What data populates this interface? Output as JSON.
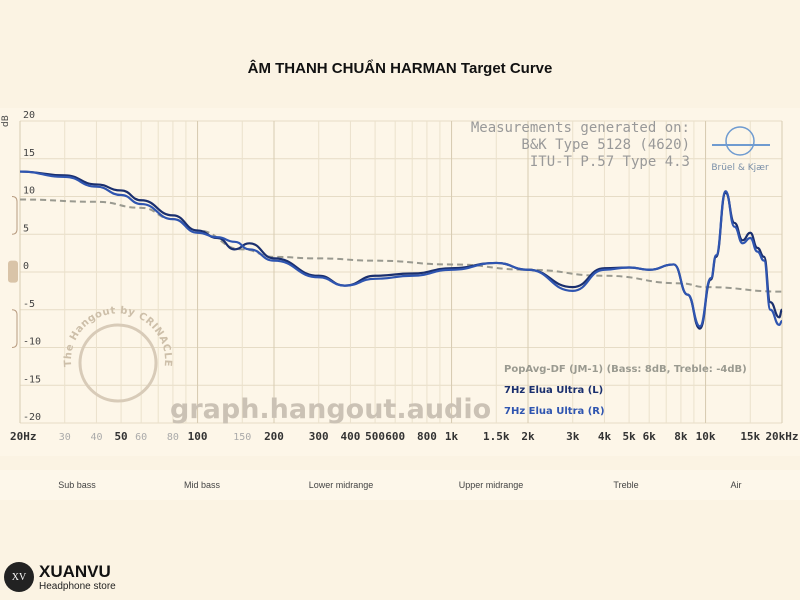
{
  "title": "ÂM THANH CHUẨN HARMAN Target Curve",
  "chart_data": {
    "type": "line",
    "title": "ÂM THANH CHUẨN HARMAN Target Curve",
    "ylabel": "dB",
    "xscale": "log",
    "xlim": [
      20,
      20000
    ],
    "ylim": [
      -20,
      20
    ],
    "grid": true,
    "yticks": [
      "20",
      "15",
      "10",
      "5",
      "0",
      "-5",
      "-10",
      "-15",
      "-20"
    ],
    "ytick_values": [
      20,
      15,
      10,
      5,
      0,
      -5,
      -10,
      -15,
      -20
    ],
    "xticks": [
      {
        "f": 20,
        "label": "20Hz",
        "major": true
      },
      {
        "f": 30,
        "label": "30",
        "major": false
      },
      {
        "f": 40,
        "label": "40",
        "major": false
      },
      {
        "f": 50,
        "label": "50",
        "major": true
      },
      {
        "f": 60,
        "label": "60",
        "major": false
      },
      {
        "f": 80,
        "label": "80",
        "major": false
      },
      {
        "f": 100,
        "label": "100",
        "major": true
      },
      {
        "f": 150,
        "label": "150",
        "major": false
      },
      {
        "f": 200,
        "label": "200",
        "major": true
      },
      {
        "f": 300,
        "label": "300",
        "major": true
      },
      {
        "f": 400,
        "label": "400",
        "major": true
      },
      {
        "f": 500,
        "label": "500",
        "major": true
      },
      {
        "f": 600,
        "label": "600",
        "major": true
      },
      {
        "f": 800,
        "label": "800",
        "major": true
      },
      {
        "f": 1000,
        "label": "1k",
        "major": true
      },
      {
        "f": 1500,
        "label": "1.5k",
        "major": true
      },
      {
        "f": 2000,
        "label": "2k",
        "major": true
      },
      {
        "f": 3000,
        "label": "3k",
        "major": true
      },
      {
        "f": 4000,
        "label": "4k",
        "major": true
      },
      {
        "f": 5000,
        "label": "5k",
        "major": true
      },
      {
        "f": 6000,
        "label": "6k",
        "major": true
      },
      {
        "f": 8000,
        "label": "8k",
        "major": true
      },
      {
        "f": 10000,
        "label": "10k",
        "major": true
      },
      {
        "f": 15000,
        "label": "15k",
        "major": true
      },
      {
        "f": 20000,
        "label": "20kHz",
        "major": true
      }
    ],
    "legend_position": "bottom-right",
    "series": [
      {
        "name": "PopAvg-DF (JM-1) (Bass: 8dB, Treble: -4dB)",
        "color": "#9a9a90",
        "dashed": true,
        "x": [
          20,
          40,
          60,
          80,
          100,
          150,
          200,
          300,
          500,
          1000,
          2000,
          4000,
          8000,
          10000,
          20000
        ],
        "y": [
          9.6,
          9.3,
          8.5,
          7,
          5.5,
          3,
          2,
          1.8,
          1.5,
          1,
          0.3,
          -0.5,
          -1.5,
          -2,
          -2.6
        ]
      },
      {
        "name": "7Hz Elua Ultra (L)",
        "color": "#1a2f6e",
        "dashed": false,
        "x": [
          20,
          30,
          40,
          50,
          60,
          80,
          100,
          120,
          140,
          160,
          200,
          300,
          380,
          500,
          700,
          1000,
          1500,
          2000,
          3000,
          4000,
          5000,
          6000,
          7500,
          8500,
          9500,
          10500,
          11000,
          12000,
          13000,
          14000,
          15000,
          16000,
          17000,
          18000,
          19500,
          20000
        ],
        "y": [
          13.3,
          12.8,
          11.6,
          10.8,
          9.5,
          7.5,
          5.5,
          4.5,
          3,
          3.8,
          1.8,
          -0.5,
          -1.8,
          -0.5,
          -0.2,
          0.5,
          1.2,
          0.3,
          -2,
          0.5,
          0.6,
          0.3,
          1,
          -3,
          -7.5,
          -1,
          2,
          10.5,
          6.5,
          4.2,
          5.2,
          3.2,
          2,
          -4,
          -6,
          -5
        ]
      },
      {
        "name": "7Hz Elua Ultra (R)",
        "color": "#2f55b0",
        "dashed": false,
        "x": [
          20,
          30,
          40,
          50,
          60,
          80,
          100,
          120,
          140,
          160,
          200,
          300,
          380,
          500,
          700,
          1000,
          1500,
          2000,
          3000,
          4000,
          5000,
          6000,
          7500,
          8500,
          9500,
          10500,
          11000,
          12000,
          13000,
          14000,
          15000,
          16000,
          17000,
          18000,
          19500,
          20000
        ],
        "y": [
          13.3,
          12.6,
          11.3,
          10.2,
          9,
          7,
          5.2,
          4.6,
          4,
          3,
          1.5,
          -0.7,
          -1.8,
          -0.9,
          -0.5,
          0.3,
          1.2,
          0.3,
          -2.5,
          0.3,
          0.6,
          0.3,
          1,
          -3,
          -7.2,
          -0.8,
          2.2,
          10.7,
          6,
          3.8,
          4.5,
          2.7,
          1.5,
          -5,
          -7,
          -6.5
        ]
      }
    ]
  },
  "annotation": [
    "Measurements generated on:",
    "B&K Type 5128 (4620)",
    "ITU-T P.57 Type 4.3"
  ],
  "bk_logo_text": "Brüel & Kjær",
  "watermark": "graph.hangout.audio",
  "hangout_logo_text": "The Hangout by CRINACLE",
  "bands": [
    "Sub bass",
    "Mid bass",
    "Lower midrange",
    "Upper midrange",
    "Treble",
    "Air"
  ],
  "brand": {
    "name": "XUANVU",
    "sub": "Headphone store",
    "logo": "XV"
  }
}
